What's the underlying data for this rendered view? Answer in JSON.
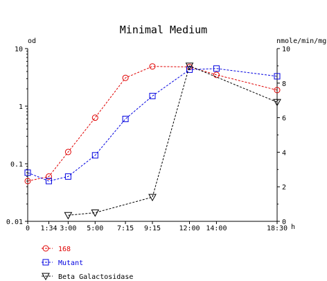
{
  "chart_data": {
    "type": "line",
    "title": "Minimal Medium",
    "x": [
      "0",
      "1:34",
      "3:00",
      "5:00",
      "7:15",
      "9:15",
      "12:00",
      "14:00",
      "18:30"
    ],
    "x_hours": [
      0,
      1.5667,
      3,
      5,
      7.25,
      9.25,
      12,
      14,
      18.5
    ],
    "x_unit": "h",
    "xlim": [
      0,
      18.5
    ],
    "y_left": {
      "label": "od",
      "scale": "log",
      "lim": [
        0.01,
        10
      ],
      "ticks": [
        "0.01",
        "0.1",
        "1",
        "10"
      ]
    },
    "y_right": {
      "label": "nmole/min/mg",
      "scale": "linear",
      "lim": [
        0,
        10
      ],
      "ticks": [
        "0",
        "2",
        "4",
        "6",
        "8",
        "10"
      ]
    },
    "grid": false,
    "legend_position": "bottom-left",
    "series": [
      {
        "name": "168",
        "axis": "left",
        "color": "#e00000",
        "marker": "circle",
        "points": [
          [
            0,
            0.05
          ],
          [
            1.5667,
            0.06
          ],
          [
            3,
            0.16
          ],
          [
            5,
            0.63
          ],
          [
            7.25,
            3.1
          ],
          [
            9.25,
            4.9
          ],
          [
            12,
            4.8
          ],
          [
            14,
            3.5
          ],
          [
            18.5,
            1.9
          ]
        ]
      },
      {
        "name": "Mutant",
        "axis": "left",
        "color": "#0000e0",
        "marker": "square",
        "points": [
          [
            0,
            0.07
          ],
          [
            1.5667,
            0.05
          ],
          [
            3,
            0.06
          ],
          [
            5,
            0.14
          ],
          [
            7.25,
            0.6
          ],
          [
            9.25,
            1.5
          ],
          [
            12,
            4.3
          ],
          [
            14,
            4.5
          ],
          [
            18.5,
            3.3
          ]
        ]
      },
      {
        "name": "Beta Galactosidase",
        "axis": "right",
        "color": "#000000",
        "marker": "triangle-down",
        "points": [
          [
            3,
            0.35
          ],
          [
            5,
            0.5
          ],
          [
            9.25,
            1.4
          ],
          [
            12,
            9.0
          ],
          [
            18.5,
            6.9
          ]
        ]
      }
    ]
  }
}
